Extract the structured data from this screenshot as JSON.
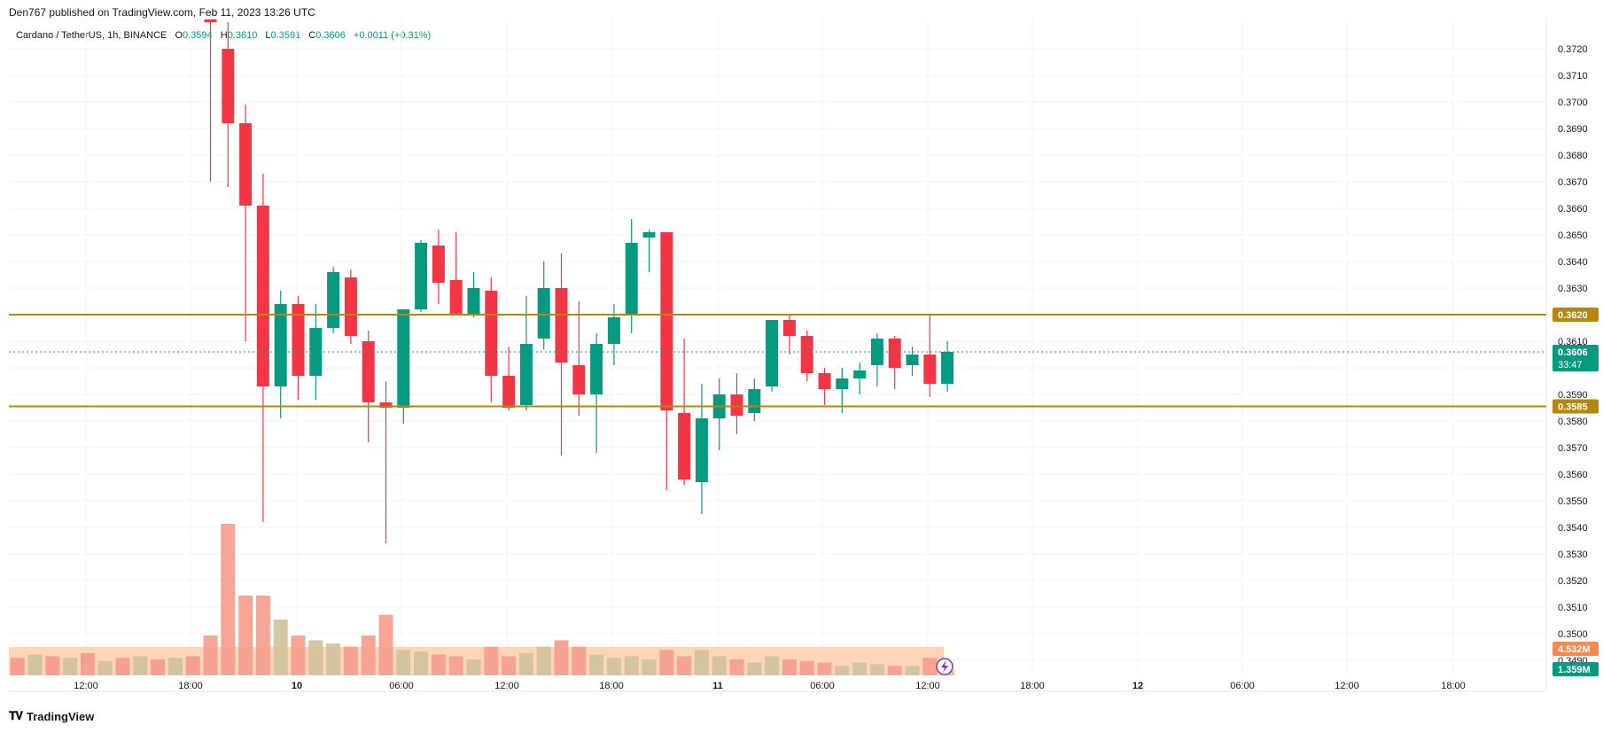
{
  "header": {
    "published_by": "Den767 published on TradingView.com, Feb 11, 2023 13:26 UTC"
  },
  "legend": {
    "symbol": "Cardano / TetherUS, 1h, BINANCE",
    "open_label": "O",
    "open": "0.3594",
    "high_label": "H",
    "high": "0.3610",
    "low_label": "L",
    "low": "0.3591",
    "close_label": "C",
    "close": "0.3606",
    "change": "+0.0011 (+0.31%)"
  },
  "price_axis": {
    "ticks": [
      "0.3720",
      "0.3710",
      "0.3700",
      "0.3690",
      "0.3680",
      "0.3670",
      "0.3660",
      "0.3650",
      "0.3640",
      "0.3630",
      "0.3620",
      "0.3610",
      "0.3600",
      "0.3590",
      "0.3580",
      "0.3570",
      "0.3560",
      "0.3550",
      "0.3540",
      "0.3530",
      "0.3520",
      "0.3510",
      "0.3500",
      "0.3490"
    ],
    "current_price": "0.3606",
    "countdown": "33:47",
    "volume_ma_label": "4.532M",
    "volume_label": "1.359M"
  },
  "time_axis": {
    "labels": [
      "12:00",
      "18:00",
      "10",
      "06:00",
      "12:00",
      "18:00",
      "11",
      "06:00",
      "12:00",
      "18:00",
      "12",
      "06:00",
      "12:00",
      "18:00"
    ]
  },
  "horizontal_lines": [
    {
      "price": 0.362,
      "label": "0.3620",
      "color": "#b8860b"
    },
    {
      "price": 0.35855,
      "label": "0.3585",
      "color": "#b8860b"
    }
  ],
  "colors": {
    "up": "#089981",
    "down": "#f23645",
    "vol_up": "#d2c49c",
    "vol_down": "#f7a08f",
    "vol_ma_fill": "#fdd5b8",
    "grid": "#f0f3fa",
    "price_line": "#089981",
    "accent_purple": "#9c27b0"
  },
  "footer": {
    "brand": "TradingView"
  },
  "chart_data": {
    "type": "candlestick",
    "title": "Cardano / TetherUS, 1h, BINANCE",
    "ylim": [
      0.3485,
      0.3725
    ],
    "x_first_candle_time": "Feb 9 18:00",
    "interval": "1h",
    "candles": [
      {
        "o": 0.374,
        "h": 0.376,
        "l": 0.367,
        "c": 0.373
      },
      {
        "o": 0.372,
        "h": 0.373,
        "l": 0.3668,
        "c": 0.3692
      },
      {
        "o": 0.3692,
        "h": 0.3699,
        "l": 0.361,
        "c": 0.3661
      },
      {
        "o": 0.3661,
        "h": 0.3673,
        "l": 0.3542,
        "c": 0.3593
      },
      {
        "o": 0.3593,
        "h": 0.3629,
        "l": 0.3581,
        "c": 0.3624
      },
      {
        "o": 0.3624,
        "h": 0.3627,
        "l": 0.3588,
        "c": 0.3597
      },
      {
        "o": 0.3597,
        "h": 0.3624,
        "l": 0.3588,
        "c": 0.3615
      },
      {
        "o": 0.3615,
        "h": 0.3638,
        "l": 0.3613,
        "c": 0.3636
      },
      {
        "o": 0.3634,
        "h": 0.3637,
        "l": 0.3609,
        "c": 0.3612
      },
      {
        "o": 0.361,
        "h": 0.3614,
        "l": 0.3572,
        "c": 0.3587
      },
      {
        "o": 0.3587,
        "h": 0.3595,
        "l": 0.3534,
        "c": 0.3585
      },
      {
        "o": 0.3585,
        "h": 0.3622,
        "l": 0.3579,
        "c": 0.3622
      },
      {
        "o": 0.3622,
        "h": 0.3648,
        "l": 0.3621,
        "c": 0.3647
      },
      {
        "o": 0.3646,
        "h": 0.3652,
        "l": 0.3624,
        "c": 0.3632
      },
      {
        "o": 0.3633,
        "h": 0.3651,
        "l": 0.362,
        "c": 0.362
      },
      {
        "o": 0.362,
        "h": 0.3636,
        "l": 0.3619,
        "c": 0.363
      },
      {
        "o": 0.3629,
        "h": 0.3634,
        "l": 0.3587,
        "c": 0.3597
      },
      {
        "o": 0.3597,
        "h": 0.3608,
        "l": 0.3584,
        "c": 0.3585
      },
      {
        "o": 0.3586,
        "h": 0.3627,
        "l": 0.3584,
        "c": 0.3609
      },
      {
        "o": 0.3611,
        "h": 0.364,
        "l": 0.3607,
        "c": 0.363
      },
      {
        "o": 0.363,
        "h": 0.3643,
        "l": 0.3567,
        "c": 0.3602
      },
      {
        "o": 0.3601,
        "h": 0.3625,
        "l": 0.3582,
        "c": 0.359
      },
      {
        "o": 0.359,
        "h": 0.3613,
        "l": 0.3568,
        "c": 0.3609
      },
      {
        "o": 0.3609,
        "h": 0.3624,
        "l": 0.3601,
        "c": 0.3619
      },
      {
        "o": 0.362,
        "h": 0.3656,
        "l": 0.3613,
        "c": 0.3647
      },
      {
        "o": 0.3649,
        "h": 0.3652,
        "l": 0.3636,
        "c": 0.3651
      },
      {
        "o": 0.3651,
        "h": 0.3651,
        "l": 0.3554,
        "c": 0.3584
      },
      {
        "o": 0.3583,
        "h": 0.3611,
        "l": 0.3556,
        "c": 0.3558
      },
      {
        "o": 0.3557,
        "h": 0.3594,
        "l": 0.3545,
        "c": 0.3581
      },
      {
        "o": 0.3581,
        "h": 0.3596,
        "l": 0.3569,
        "c": 0.359
      },
      {
        "o": 0.359,
        "h": 0.3598,
        "l": 0.3575,
        "c": 0.3582
      },
      {
        "o": 0.3583,
        "h": 0.3596,
        "l": 0.358,
        "c": 0.3592
      },
      {
        "o": 0.3593,
        "h": 0.3618,
        "l": 0.3591,
        "c": 0.3618
      },
      {
        "o": 0.3618,
        "h": 0.362,
        "l": 0.3605,
        "c": 0.3612
      },
      {
        "o": 0.3612,
        "h": 0.3614,
        "l": 0.3595,
        "c": 0.3598
      },
      {
        "o": 0.3598,
        "h": 0.36,
        "l": 0.3586,
        "c": 0.3592
      },
      {
        "o": 0.3592,
        "h": 0.36,
        "l": 0.3583,
        "c": 0.3596
      },
      {
        "o": 0.3596,
        "h": 0.3602,
        "l": 0.359,
        "c": 0.3599
      },
      {
        "o": 0.3601,
        "h": 0.3613,
        "l": 0.3593,
        "c": 0.3611
      },
      {
        "o": 0.3611,
        "h": 0.3612,
        "l": 0.3592,
        "c": 0.36
      },
      {
        "o": 0.3601,
        "h": 0.3608,
        "l": 0.3597,
        "c": 0.3605
      },
      {
        "o": 0.3605,
        "h": 0.362,
        "l": 0.3589,
        "c": 0.3594
      },
      {
        "o": 0.3594,
        "h": 0.361,
        "l": 0.3591,
        "c": 0.3606
      }
    ],
    "volume": {
      "note": "relative volume levels per candle, 0-1 scale",
      "values": [
        0.25,
        0.95,
        0.5,
        0.5,
        0.35,
        0.25,
        0.22,
        0.2,
        0.18,
        0.25,
        0.38,
        0.16,
        0.15,
        0.13,
        0.12,
        0.1,
        0.18,
        0.12,
        0.14,
        0.18,
        0.22,
        0.18,
        0.13,
        0.11,
        0.12,
        0.1,
        0.16,
        0.12,
        0.16,
        0.12,
        0.1,
        0.08,
        0.12,
        0.1,
        0.09,
        0.08,
        0.06,
        0.08,
        0.07,
        0.06,
        0.06,
        0.11,
        0.03
      ],
      "pre_values": [
        0.1,
        0.12,
        0.11,
        0.13,
        0.12,
        0.11,
        0.14,
        0.09,
        0.11,
        0.12,
        0.1,
        0.11,
        0.12
      ]
    }
  }
}
